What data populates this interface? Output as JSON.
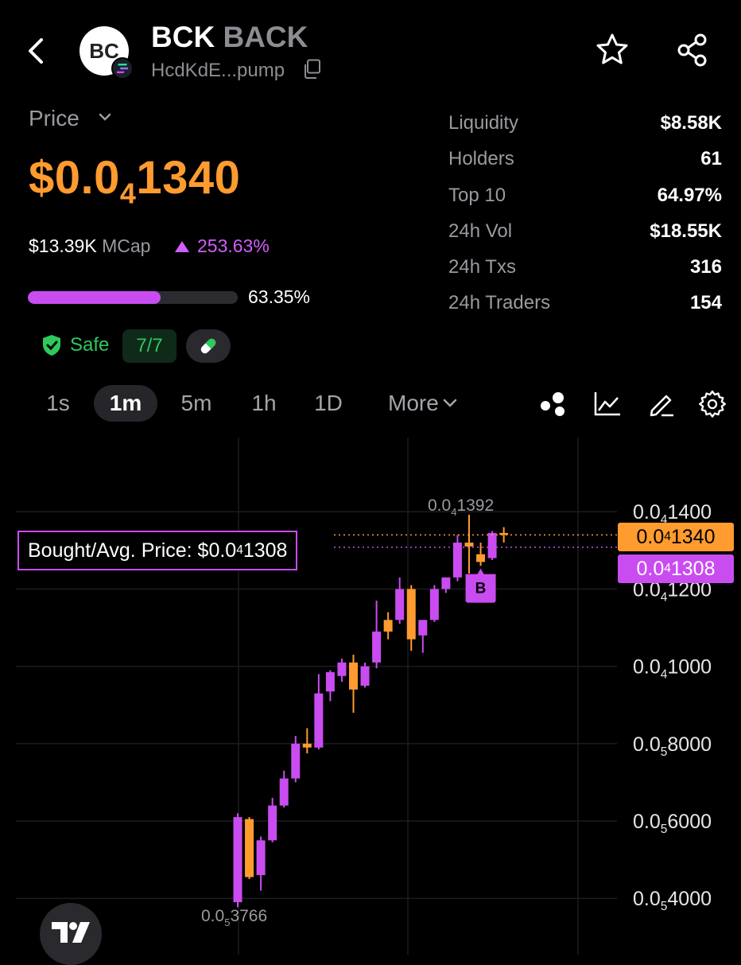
{
  "header": {
    "avatar_initials": "BC",
    "symbol": "BCK",
    "name": "BACK",
    "address": "HcdKdE...pump"
  },
  "price_section": {
    "label": "Price",
    "price_prefix": "$0.0",
    "price_zeros": "4",
    "price_digits": "1340",
    "mcap_value": "$13.39K",
    "mcap_label": "MCap",
    "change": "253.63%",
    "progress": 0.6335,
    "progress_text": "63.35%",
    "safe_label": "Safe",
    "safe_score": "7/7"
  },
  "stats": [
    {
      "label": "Liquidity",
      "value": "$8.58K"
    },
    {
      "label": "Holders",
      "value": "61"
    },
    {
      "label": "Top 10",
      "value": "64.97%"
    },
    {
      "label": "24h Vol",
      "value": "$18.55K"
    },
    {
      "label": "24h Txs",
      "value": "316"
    },
    {
      "label": "24h Traders",
      "value": "154"
    }
  ],
  "timeframes": {
    "items": [
      "1s",
      "1m",
      "5m",
      "1h",
      "1D"
    ],
    "active": "1m",
    "more_label": "More"
  },
  "colors": {
    "up": "#c94cf0",
    "down": "#ff9b2f",
    "safe": "#2ec95c"
  },
  "chart_data": {
    "type": "candlestick",
    "y_tick_labels": [
      {
        "pre": "0.0",
        "z": "4",
        "d": "1400",
        "value": 0.00014
      },
      {
        "pre": "0.0",
        "z": "4",
        "d": "1200",
        "value": 0.00012
      },
      {
        "pre": "0.0",
        "z": "4",
        "d": "1000",
        "value": 0.0001
      },
      {
        "pre": "0.0",
        "z": "5",
        "d": "8000",
        "value": 8e-05
      },
      {
        "pre": "0.0",
        "z": "5",
        "d": "6000",
        "value": 6e-05
      },
      {
        "pre": "0.0",
        "z": "5",
        "d": "4000",
        "value": 4e-05
      }
    ],
    "ylim": [
      3.5e-05,
      0.00015
    ],
    "high_label": {
      "pre": "0.0",
      "z": "4",
      "d": "1392"
    },
    "low_label": {
      "pre": "0.0",
      "z": "5",
      "d": "3766"
    },
    "current_price": {
      "pre": "0.0",
      "z": "4",
      "d": "1340",
      "value": 0.000134
    },
    "avg_price": {
      "pre": "0.0",
      "z": "4",
      "d": "1308",
      "value": 0.0001308
    },
    "bought_label": "Bought/Avg. Price: $0.0",
    "bought_digits": "1308",
    "buy_marker": "B",
    "candles": [
      {
        "o": 3.9e-05,
        "h": 6.2e-05,
        "l": 3.77e-05,
        "c": 6.1e-05
      },
      {
        "o": 6.05e-05,
        "h": 6.1e-05,
        "l": 4.5e-05,
        "c": 4.55e-05
      },
      {
        "o": 4.6e-05,
        "h": 5.6e-05,
        "l": 4.2e-05,
        "c": 5.5e-05
      },
      {
        "o": 5.5e-05,
        "h": 6.6e-05,
        "l": 5.45e-05,
        "c": 6.4e-05
      },
      {
        "o": 6.4e-05,
        "h": 7.3e-05,
        "l": 6.35e-05,
        "c": 7.1e-05
      },
      {
        "o": 7.1e-05,
        "h": 8.2e-05,
        "l": 7e-05,
        "c": 8e-05
      },
      {
        "o": 8e-05,
        "h": 8.4e-05,
        "l": 7.75e-05,
        "c": 7.9e-05
      },
      {
        "o": 7.9e-05,
        "h": 9.8e-05,
        "l": 7.85e-05,
        "c": 9.3e-05
      },
      {
        "o": 9.35e-05,
        "h": 9.9e-05,
        "l": 9.1e-05,
        "c": 9.85e-05
      },
      {
        "o": 9.75e-05,
        "h": 0.000102,
        "l": 9.6e-05,
        "c": 0.000101
      },
      {
        "o": 0.000101,
        "h": 0.000103,
        "l": 8.8e-05,
        "c": 9.4e-05
      },
      {
        "o": 9.5e-05,
        "h": 0.000101,
        "l": 9.45e-05,
        "c": 0.0001
      },
      {
        "o": 0.000101,
        "h": 0.000117,
        "l": 9.95e-05,
        "c": 0.000109
      },
      {
        "o": 0.000112,
        "h": 0.000114,
        "l": 0.000107,
        "c": 0.000109
      },
      {
        "o": 0.000112,
        "h": 0.000123,
        "l": 0.000111,
        "c": 0.00012
      },
      {
        "o": 0.00012,
        "h": 0.000121,
        "l": 0.000104,
        "c": 0.000107
      },
      {
        "o": 0.000108,
        "h": 0.000112,
        "l": 0.0001035,
        "c": 0.000112
      },
      {
        "o": 0.000112,
        "h": 0.000121,
        "l": 0.0001115,
        "c": 0.00012
      },
      {
        "o": 0.00012,
        "h": 0.000123,
        "l": 0.000119,
        "c": 0.000123
      },
      {
        "o": 0.000123,
        "h": 0.000134,
        "l": 0.000122,
        "c": 0.000132
      },
      {
        "o": 0.000132,
        "h": 0.0001392,
        "l": 0.000124,
        "c": 0.000131
      },
      {
        "o": 0.000129,
        "h": 0.000132,
        "l": 0.000126,
        "c": 0.000127
      },
      {
        "o": 0.000128,
        "h": 0.000135,
        "l": 0.0001275,
        "c": 0.0001345
      },
      {
        "o": 0.0001345,
        "h": 0.000136,
        "l": 0.000132,
        "c": 0.000134
      }
    ]
  }
}
